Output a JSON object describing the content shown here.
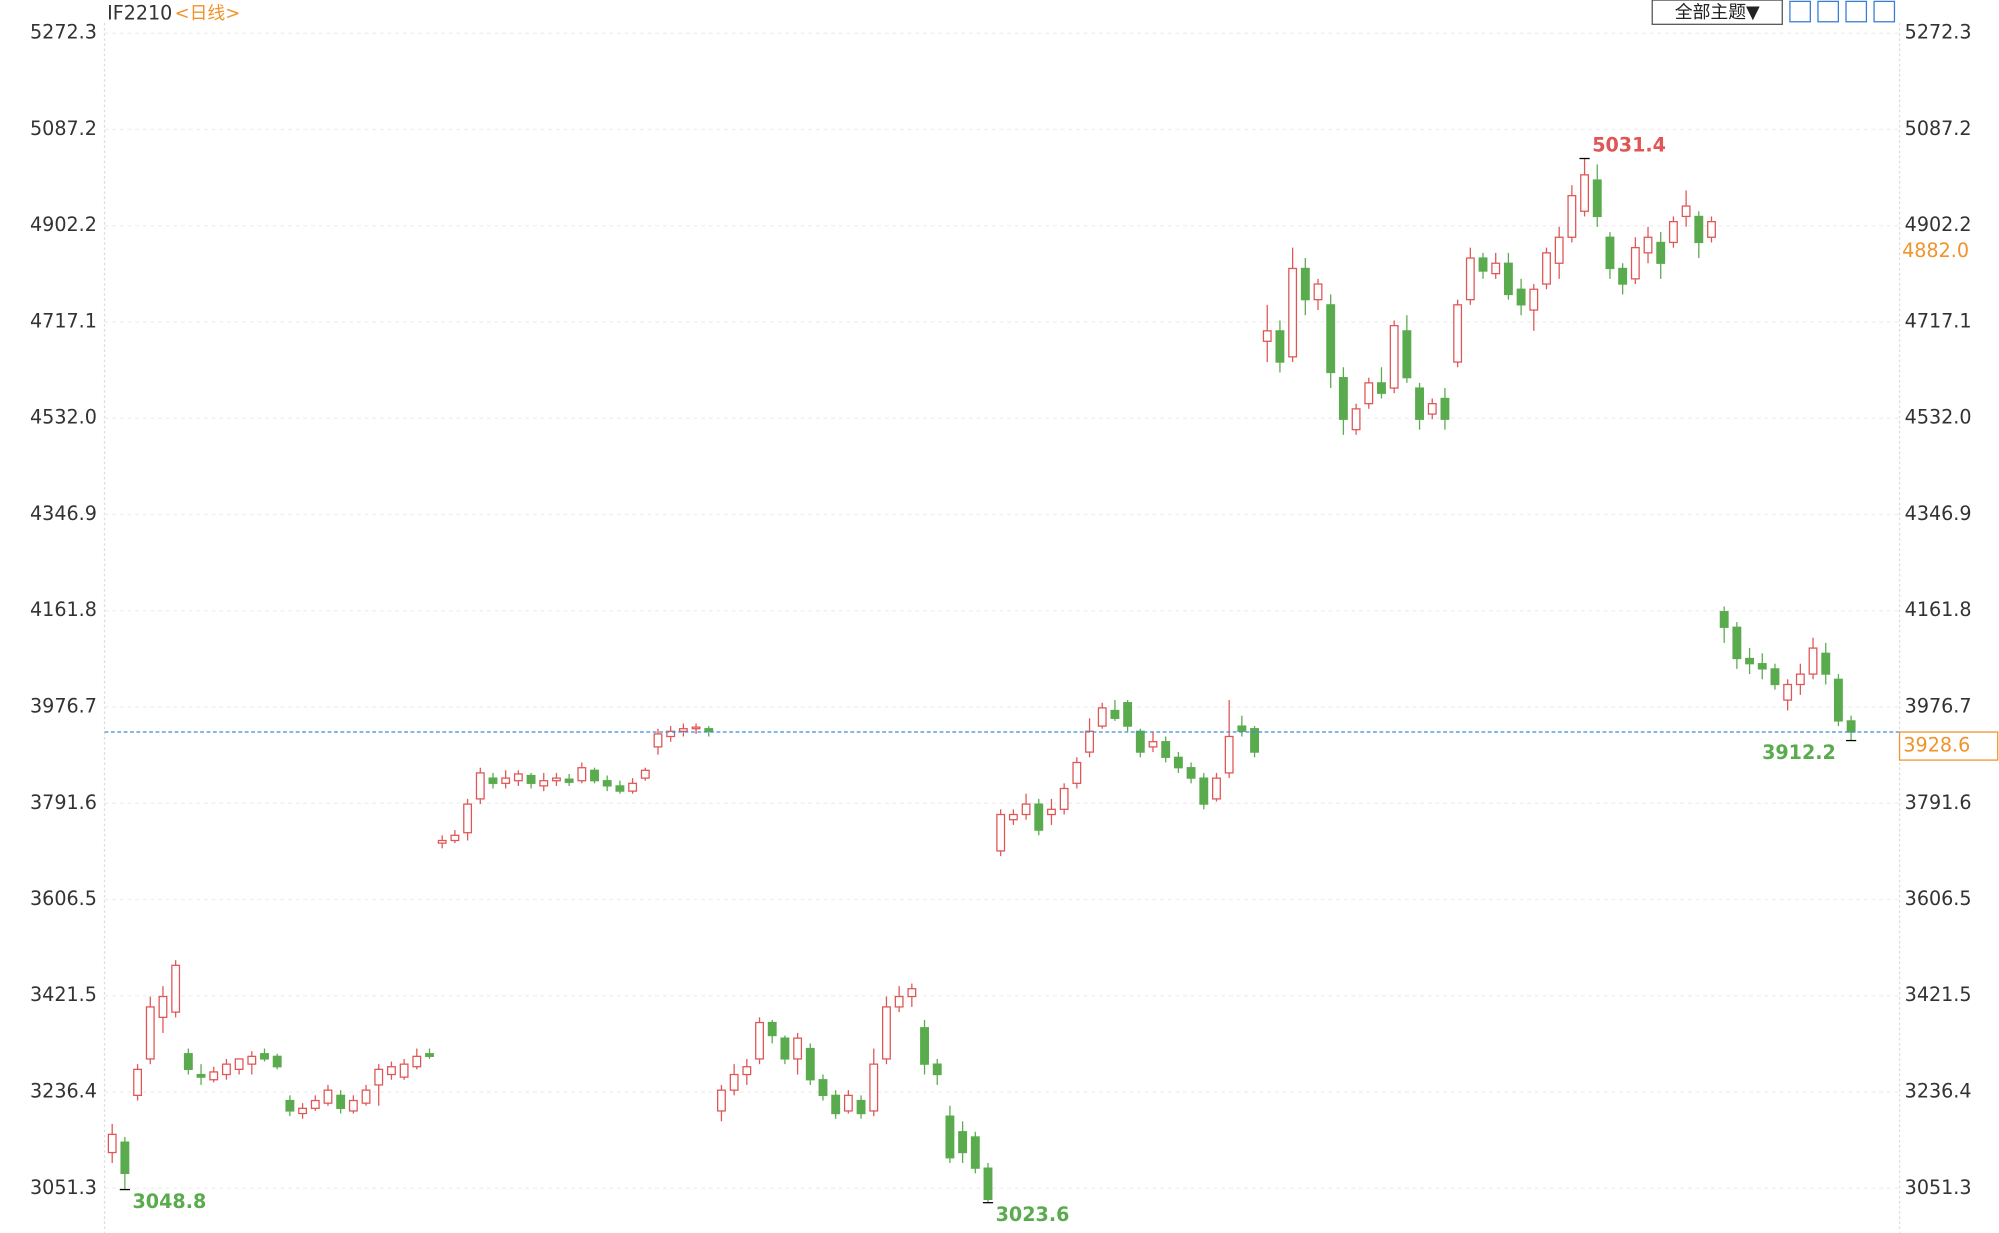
{
  "chart_data": {
    "type": "candlestick",
    "title": "IF2210",
    "subtitle": "<日线>",
    "up_color": "#e05555",
    "down_color": "#5aab4e",
    "ylim": [
      2965.5,
      5336
    ],
    "yticks": [
      3051.3,
      3236.4,
      3421.5,
      3606.5,
      3791.6,
      3976.7,
      4161.8,
      4346.9,
      {
        "value": 4532,
        "label": "4532.0"
      },
      4717.1,
      4902.2,
      5087.2,
      5272.3
    ],
    "grid": true,
    "open": [
      3120,
      3140,
      3230,
      3300,
      3380,
      3390,
      3310,
      3270,
      3260,
      3270,
      3280,
      3290,
      3310,
      3305,
      3220,
      3195,
      3205,
      3215,
      3230,
      3200,
      3215,
      3250,
      3270,
      3265,
      3285,
      3310,
      3715,
      3720,
      3735,
      3800,
      3840,
      3830,
      3835,
      3845,
      3825,
      3835,
      3838,
      3835,
      3855,
      3835,
      3825,
      3815,
      3840,
      3900,
      3920,
      3930,
      3935,
      3935,
      3200,
      3240,
      3270,
      3300,
      3370,
      3340,
      3300,
      3320,
      3260,
      3230,
      3200,
      3220,
      3200,
      3300,
      3400,
      3420,
      3360,
      3290,
      3190,
      3160,
      3150,
      3090,
      3700,
      3760,
      3770,
      3790,
      3770,
      3780,
      3830,
      3890,
      3940,
      3970,
      3985,
      3930,
      3900,
      3910,
      3880,
      3860,
      3840,
      3800,
      3850,
      3940,
      3935,
      4680,
      4700,
      4650,
      4820,
      4760,
      4750,
      4610,
      4510,
      4560,
      4600,
      4590,
      4700,
      4590,
      4540,
      4570,
      4640,
      4760,
      4840,
      4810,
      4830,
      4780,
      4740,
      4790,
      4830,
      4880,
      4930,
      4990,
      4880,
      4820,
      4800,
      4850,
      4870,
      4870,
      4920,
      4920,
      4880,
      4160,
      4130,
      4070,
      4060,
      4050,
      3990,
      4020,
      4040,
      4080,
      4030,
      3950
    ],
    "high": [
      3175,
      3150,
      3290,
      3420,
      3440,
      3490,
      3320,
      3290,
      3285,
      3300,
      3300,
      3315,
      3320,
      3310,
      3230,
      3215,
      3230,
      3250,
      3240,
      3230,
      3250,
      3290,
      3295,
      3300,
      3320,
      3320,
      3730,
      3740,
      3800,
      3860,
      3850,
      3855,
      3855,
      3850,
      3850,
      3850,
      3848,
      3870,
      3860,
      3845,
      3835,
      3840,
      3860,
      3935,
      3940,
      3945,
      3945,
      3940,
      3250,
      3290,
      3300,
      3380,
      3375,
      3345,
      3350,
      3330,
      3270,
      3240,
      3240,
      3230,
      3320,
      3420,
      3440,
      3445,
      3375,
      3300,
      3210,
      3180,
      3160,
      3100,
      3780,
      3780,
      3810,
      3800,
      3800,
      3830,
      3880,
      3955,
      3985,
      3990,
      3990,
      3935,
      3930,
      3920,
      3890,
      3870,
      3850,
      3850,
      3990,
      3960,
      3940,
      4750,
      4720,
      4860,
      4840,
      4800,
      4770,
      4630,
      4560,
      4610,
      4630,
      4720,
      4730,
      4600,
      4570,
      4590,
      4760,
      4860,
      4850,
      4850,
      4850,
      4800,
      4790,
      4860,
      4900,
      4980,
      5031.4,
      5020,
      4890,
      4830,
      4880,
      4900,
      4890,
      4920,
      4970,
      4930,
      4920,
      4170,
      4140,
      4090,
      4080,
      4060,
      4030,
      4060,
      4110,
      4100,
      4040,
      3960
    ],
    "low": [
      3100,
      3048.8,
      3220,
      3290,
      3350,
      3380,
      3270,
      3250,
      3255,
      3260,
      3270,
      3270,
      3295,
      3280,
      3190,
      3185,
      3200,
      3210,
      3195,
      3195,
      3210,
      3210,
      3260,
      3260,
      3280,
      3300,
      3705,
      3715,
      3720,
      3790,
      3820,
      3820,
      3825,
      3820,
      3815,
      3825,
      3825,
      3830,
      3830,
      3815,
      3810,
      3810,
      3835,
      3885,
      3910,
      3920,
      3925,
      3920,
      3180,
      3230,
      3250,
      3290,
      3330,
      3290,
      3270,
      3250,
      3220,
      3185,
      3195,
      3185,
      3190,
      3290,
      3390,
      3400,
      3270,
      3250,
      3100,
      3100,
      3080,
      3023.6,
      3690,
      3750,
      3760,
      3730,
      3750,
      3770,
      3820,
      3880,
      3935,
      3950,
      3930,
      3880,
      3890,
      3870,
      3850,
      3830,
      3780,
      3795,
      3840,
      3920,
      3880,
      4640,
      4620,
      4640,
      4730,
      4740,
      4590,
      4500,
      4500,
      4550,
      4570,
      4580,
      4600,
      4510,
      4530,
      4510,
      4630,
      4750,
      4800,
      4800,
      4760,
      4730,
      4700,
      4780,
      4800,
      4870,
      4920,
      4900,
      4800,
      4770,
      4790,
      4830,
      4800,
      4860,
      4900,
      4840,
      4870,
      4100,
      4050,
      4040,
      4030,
      4010,
      3970,
      4000,
      4030,
      4020,
      3940,
      3912.2
    ],
    "close": [
      3155,
      3080,
      3280,
      3400,
      3420,
      3480,
      3280,
      3265,
      3275,
      3290,
      3300,
      3305,
      3300,
      3285,
      3200,
      3205,
      3220,
      3240,
      3205,
      3220,
      3240,
      3280,
      3285,
      3290,
      3305,
      3305,
      3720,
      3730,
      3790,
      3850,
      3830,
      3840,
      3848,
      3830,
      3835,
      3840,
      3832,
      3860,
      3835,
      3825,
      3815,
      3830,
      3855,
      3925,
      3930,
      3935,
      3938,
      3930,
      3240,
      3270,
      3285,
      3370,
      3345,
      3300,
      3340,
      3260,
      3230,
      3195,
      3230,
      3195,
      3290,
      3400,
      3420,
      3435,
      3290,
      3270,
      3110,
      3120,
      3090,
      3030,
      3770,
      3770,
      3790,
      3740,
      3780,
      3820,
      3870,
      3930,
      3975,
      3955,
      3940,
      3890,
      3910,
      3880,
      3860,
      3840,
      3790,
      3840,
      3920,
      3930,
      3890,
      4700,
      4640,
      4820,
      4760,
      4790,
      4620,
      4530,
      4550,
      4600,
      4580,
      4710,
      4610,
      4530,
      4560,
      4530,
      4750,
      4840,
      4815,
      4830,
      4770,
      4750,
      4780,
      4850,
      4880,
      4960,
      5000,
      4920,
      4820,
      4790,
      4860,
      4880,
      4830,
      4910,
      4940,
      4870,
      4910,
      4130,
      4070,
      4060,
      4050,
      4020,
      4020,
      4040,
      4090,
      4040,
      3950,
      3928.6
    ],
    "high_label": 5031.4,
    "low_labels": [
      3048.8,
      3023.6,
      3912.2
    ],
    "marker": {
      "value": 4882,
      "label": "4882.0",
      "color": "#f0932b"
    },
    "last_price": {
      "value": 3928.6,
      "label": "3928.6",
      "color": "#f0932b",
      "line_color": "#3a8fd6"
    }
  },
  "toolbar": {
    "theme_button": "全部主题▼"
  }
}
